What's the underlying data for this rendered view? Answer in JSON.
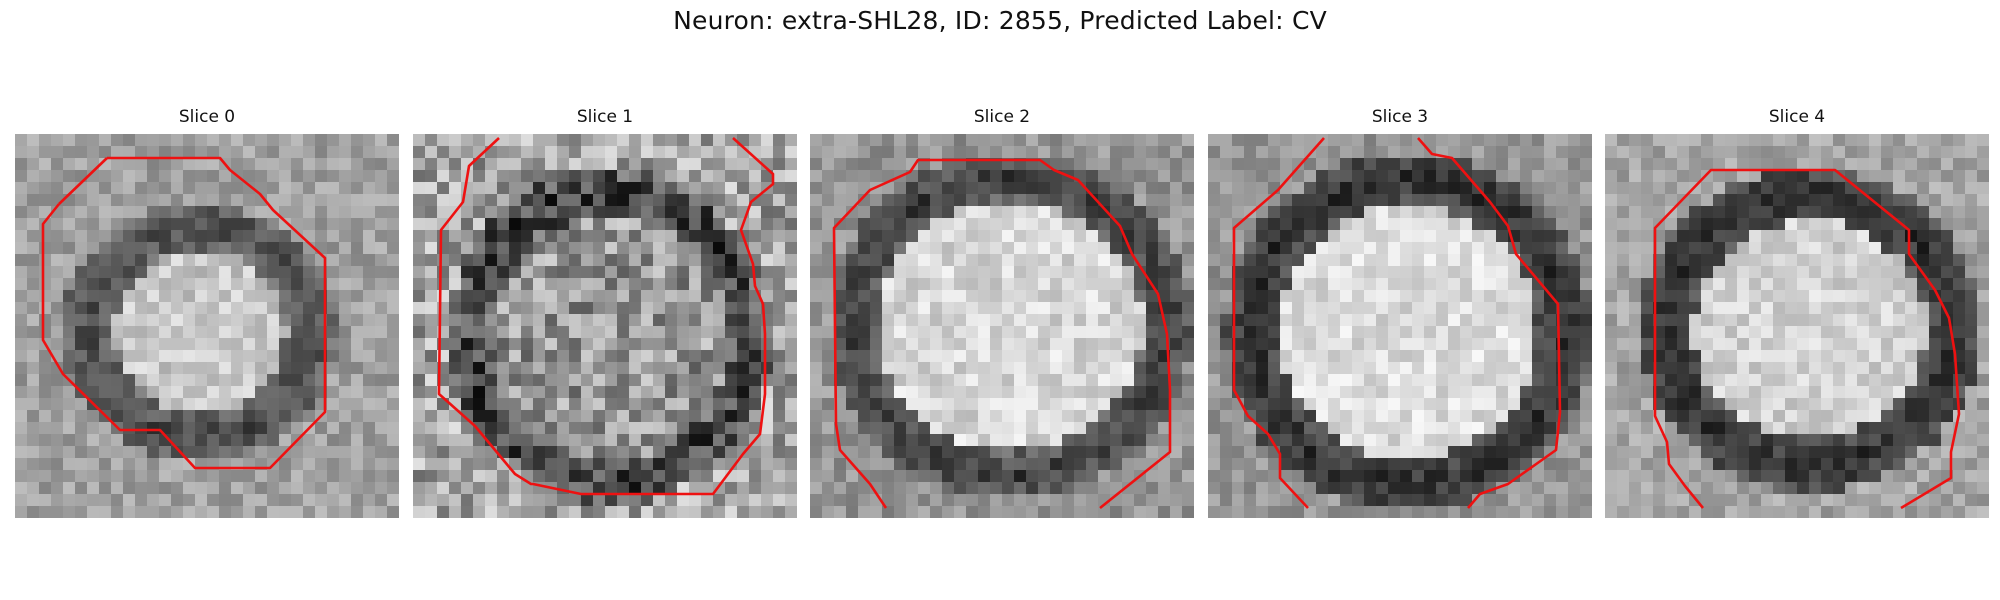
{
  "figure": {
    "title": "Neuron: extra-SHL28, ID: 2855, Predicted Label: CV"
  },
  "panels": [
    {
      "title": "Slice 0"
    },
    {
      "title": "Slice 1"
    },
    {
      "title": "Slice 2"
    },
    {
      "title": "Slice 3"
    },
    {
      "title": "Slice 4"
    }
  ],
  "colors": {
    "contour": "#ee1111",
    "background": "#ffffff",
    "pixel_dark": "#111111",
    "pixel_light": "#f2f2f2"
  }
}
